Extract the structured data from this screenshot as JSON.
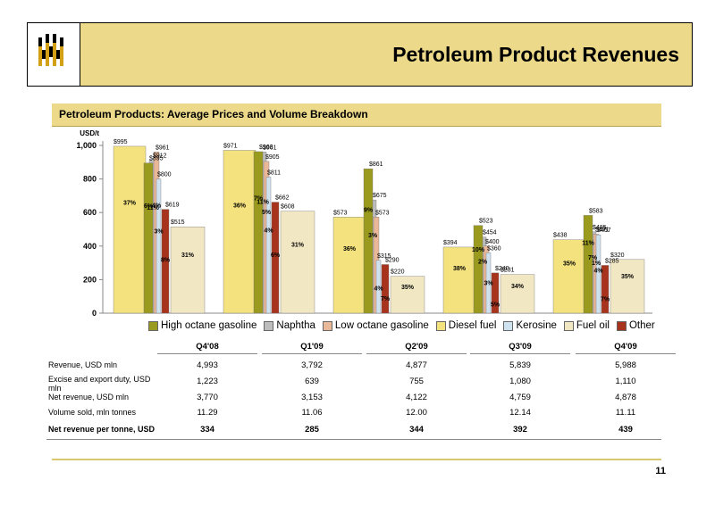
{
  "header": {
    "title": "Petroleum Product Revenues",
    "logo_icon": "company-logo-icon"
  },
  "subtitle": "Petroleum Products: Average Prices and Volume Breakdown",
  "page_number": "11",
  "chart_data": {
    "type": "bar",
    "ylabel": "USD/t",
    "ylim": [
      0,
      1000
    ],
    "yticks": [
      "0",
      "200",
      "400",
      "600",
      "800",
      "1,000"
    ],
    "categories": [
      "Q4'08",
      "Q1'09",
      "Q2'09",
      "Q3'09",
      "Q4'09"
    ],
    "series": [
      {
        "name": "High octane gasoline",
        "color": "#9a9a1e",
        "values": [
          895,
          963,
          861,
          523,
          583
        ],
        "price_labels": [
          "$895",
          "$963",
          "$861",
          "$523",
          "$583"
        ],
        "shares": [
          "6%",
          "7%",
          "9%",
          "10%",
          "11%"
        ]
      },
      {
        "name": "Naphtha",
        "color": "#bdbdbd",
        "values": [
          912,
          961,
          675,
          454,
          485
        ],
        "price_labels": [
          "$912",
          "$961",
          "$675",
          "$454",
          "$485"
        ],
        "shares": [
          "11%",
          "11%",
          "3%",
          "2%",
          "7%"
        ]
      },
      {
        "name": "Low octane gasoline",
        "color": "#e8b898",
        "values": [
          961,
          905,
          573,
          400,
          471
        ],
        "price_labels": [
          "$961",
          "$905",
          "$573",
          "$400",
          "$471"
        ],
        "shares": [
          "4%",
          "5%",
          "",
          "",
          "1%"
        ]
      },
      {
        "name": "Diesel fuel",
        "color": "#f3e27e",
        "values": [
          995,
          971,
          573,
          394,
          438
        ],
        "price_labels": [
          "$995",
          "$971",
          "$573",
          "$394",
          "$438"
        ],
        "shares": [
          "37%",
          "36%",
          "36%",
          "38%",
          "35%"
        ]
      },
      {
        "name": "Kerosine",
        "color": "#cfe2f0",
        "values": [
          800,
          811,
          315,
          360,
          467
        ],
        "price_labels": [
          "$800",
          "$811",
          "$315",
          "$360",
          "$467"
        ],
        "shares": [
          "3%",
          "4%",
          "4%",
          "3%",
          "4%"
        ]
      },
      {
        "name": "Fuel oil",
        "color": "#f1e7c3",
        "values": [
          515,
          608,
          220,
          231,
          320
        ],
        "price_labels": [
          "$515",
          "$608",
          "$220",
          "$231",
          "$320"
        ],
        "shares": [
          "31%",
          "31%",
          "35%",
          "34%",
          "35%"
        ]
      },
      {
        "name": "Other",
        "color": "#a8331c",
        "values": [
          619,
          662,
          290,
          240,
          285
        ],
        "price_labels": [
          "$619",
          "$662",
          "$290",
          "$240",
          "$285"
        ],
        "shares": [
          "8%",
          "6%",
          "7%",
          "5%",
          "7%"
        ]
      }
    ],
    "extra_share_labels": [
      [
        "",
        "3%",
        "8%",
        "8%",
        ""
      ]
    ]
  },
  "legend": [
    "High octane gasoline",
    "Naphtha",
    "Low octane gasoline",
    "Diesel fuel",
    "Kerosine",
    "Fuel oil",
    "Other"
  ],
  "table": {
    "quarters": [
      "Q4'08",
      "Q1'09",
      "Q2'09",
      "Q3'09",
      "Q4'09"
    ],
    "rows": [
      {
        "label": "Revenue, USD mln",
        "values": [
          "4,993",
          "3,792",
          "4,877",
          "5,839",
          "5,988"
        ]
      },
      {
        "label": "Excise and export duty, USD mln",
        "values": [
          "1,223",
          "639",
          "755",
          "1,080",
          "1,110"
        ]
      },
      {
        "label": "Net revenue, USD mln",
        "values": [
          "3,770",
          "3,153",
          "4,122",
          "4,759",
          "4,878"
        ]
      },
      {
        "label": "Volume sold, mln tonnes",
        "values": [
          "11.29",
          "11.06",
          "12.00",
          "12.14",
          "11.11"
        ]
      },
      {
        "label": "Net revenue per tonne, USD",
        "values": [
          "334",
          "285",
          "344",
          "392",
          "439"
        ],
        "bold": true
      }
    ]
  }
}
